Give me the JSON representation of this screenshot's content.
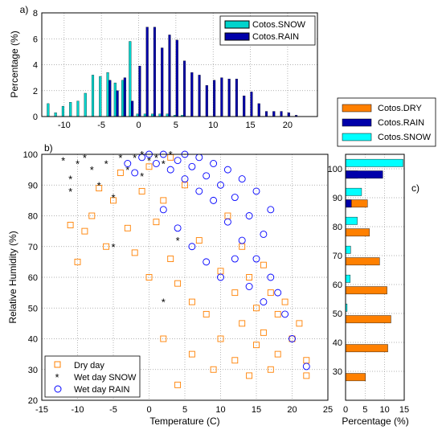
{
  "colors": {
    "dry": "#ff8000",
    "rain": "#0000aa",
    "rain_edge": "#0000ff",
    "snow": "#00ffff",
    "snow_hist": "#00d4cc",
    "grid": "#999999"
  },
  "chart_data": [
    {
      "id": "a",
      "panel_label": "a)",
      "type": "bar",
      "ylabel": "Percentage (%)",
      "xlabel": "",
      "xlim": [
        -13,
        24
      ],
      "ylim": [
        0,
        8
      ],
      "xticks": [
        -10,
        -5,
        0,
        5,
        10,
        15,
        20
      ],
      "yticks": [
        0,
        2,
        4,
        6,
        8
      ],
      "grid": true,
      "legend_position": "top-right",
      "series": [
        {
          "name": "Cotos.SNOW",
          "color_key": "snow_hist",
          "x": [
            -12,
            -11,
            -10,
            -9,
            -8,
            -7,
            -6,
            -5,
            -4,
            -3,
            -2,
            -1,
            0,
            1,
            2,
            3,
            4,
            5,
            6
          ],
          "values": [
            1.0,
            0.3,
            0.8,
            1.1,
            1.2,
            1.8,
            3.2,
            3.1,
            3.4,
            2.6,
            2.8,
            5.8,
            0.2,
            0.2,
            0.2,
            0.2,
            0.2,
            0.1,
            0.1
          ]
        },
        {
          "name": "Cotos.RAIN",
          "color_key": "rain",
          "x": [
            -4,
            -3,
            -2,
            -1,
            0,
            1,
            2,
            3,
            4,
            5,
            6,
            7,
            8,
            9,
            10,
            11,
            12,
            13,
            14,
            15,
            16,
            17,
            18,
            19,
            20,
            21
          ],
          "values": [
            2.8,
            2.0,
            3.0,
            1.2,
            3.9,
            6.9,
            6.9,
            5.3,
            6.3,
            5.9,
            4.3,
            3.4,
            3.2,
            2.4,
            2.8,
            3.0,
            2.9,
            2.9,
            1.6,
            1.9,
            1.0,
            0.4,
            0.4,
            0.4,
            0.3,
            0.1
          ]
        }
      ]
    },
    {
      "id": "b",
      "panel_label": "b)",
      "type": "scatter",
      "xlabel": "Temperature (C)",
      "ylabel": "Relative Humidity (%)",
      "xlim": [
        -15,
        25
      ],
      "ylim": [
        20,
        100
      ],
      "xticks": [
        -15,
        -10,
        -5,
        0,
        5,
        10,
        15,
        20,
        25
      ],
      "yticks": [
        20,
        30,
        40,
        50,
        60,
        70,
        80,
        90,
        100
      ],
      "grid": true,
      "legend_position": "bottom-left",
      "series": [
        {
          "name": "Dry day",
          "marker": "square",
          "color_key": "dry",
          "centroid": [
            10.5,
            57
          ],
          "points": [
            [
              -10,
              65
            ],
            [
              -9,
              75
            ],
            [
              -8,
              80
            ],
            [
              -6,
              70
            ],
            [
              -5,
              85
            ],
            [
              -4,
              94
            ],
            [
              -3,
              76
            ],
            [
              -2,
              68
            ],
            [
              -1,
              88
            ],
            [
              0,
              60
            ],
            [
              1,
              78
            ],
            [
              2,
              85
            ],
            [
              2,
              40
            ],
            [
              3,
              66
            ],
            [
              4,
              58
            ],
            [
              4,
              25
            ],
            [
              5,
              90
            ],
            [
              6,
              52
            ],
            [
              6,
              35
            ],
            [
              7,
              72
            ],
            [
              8,
              48
            ],
            [
              9,
              30
            ],
            [
              10,
              62
            ],
            [
              10,
              40
            ],
            [
              11,
              80
            ],
            [
              12,
              55
            ],
            [
              12,
              33
            ],
            [
              13,
              70
            ],
            [
              13,
              45
            ],
            [
              14,
              60
            ],
            [
              14,
              28
            ],
            [
              15,
              50
            ],
            [
              15,
              38
            ],
            [
              16,
              64
            ],
            [
              16,
              42
            ],
            [
              17,
              55
            ],
            [
              17,
              30
            ],
            [
              18,
              48
            ],
            [
              18,
              35
            ],
            [
              19,
              52
            ],
            [
              20,
              40
            ],
            [
              21,
              45
            ],
            [
              22,
              33
            ],
            [
              22,
              28
            ],
            [
              -7,
              89
            ],
            [
              -11,
              77
            ],
            [
              0,
              96
            ],
            [
              3,
              99
            ]
          ]
        },
        {
          "name": "Wet day SNOW",
          "marker": "star",
          "color_key": "snow",
          "points": [
            [
              -12,
              98
            ],
            [
              -11,
              92
            ],
            [
              -11,
              88
            ],
            [
              -10,
              97
            ],
            [
              -9,
              99
            ],
            [
              -8,
              95
            ],
            [
              -7,
              90
            ],
            [
              -6,
              97
            ],
            [
              -5,
              86
            ],
            [
              -5,
              70
            ],
            [
              -4,
              99
            ],
            [
              -3,
              95
            ],
            [
              -2,
              99
            ],
            [
              -1,
              100
            ],
            [
              0,
              98
            ],
            [
              1,
              99
            ],
            [
              2,
              97
            ],
            [
              3,
              100
            ],
            [
              4,
              72
            ],
            [
              2,
              52
            ],
            [
              -1,
              93
            ]
          ]
        },
        {
          "name": "Wet day RAIN",
          "marker": "circle",
          "color_key": "rain_edge",
          "points": [
            [
              -3,
              97
            ],
            [
              -2,
              94
            ],
            [
              -1,
              99
            ],
            [
              0,
              100
            ],
            [
              1,
              97
            ],
            [
              2,
              100
            ],
            [
              3,
              95
            ],
            [
              4,
              98
            ],
            [
              5,
              92
            ],
            [
              6,
              96
            ],
            [
              7,
              88
            ],
            [
              8,
              93
            ],
            [
              9,
              85
            ],
            [
              10,
              90
            ],
            [
              11,
              78
            ],
            [
              12,
              86
            ],
            [
              13,
              72
            ],
            [
              14,
              80
            ],
            [
              15,
              66
            ],
            [
              16,
              74
            ],
            [
              17,
              60
            ],
            [
              18,
              55
            ],
            [
              19,
              48
            ],
            [
              20,
              40
            ],
            [
              22,
              31
            ],
            [
              2,
              82
            ],
            [
              4,
              76
            ],
            [
              6,
              70
            ],
            [
              8,
              65
            ],
            [
              10,
              60
            ],
            [
              12,
              66
            ],
            [
              14,
              57
            ],
            [
              16,
              52
            ],
            [
              5,
              100
            ],
            [
              7,
              99
            ],
            [
              9,
              97
            ],
            [
              11,
              95
            ],
            [
              13,
              92
            ],
            [
              15,
              88
            ],
            [
              17,
              82
            ]
          ]
        }
      ]
    },
    {
      "id": "c",
      "panel_label": "c)",
      "type": "bar",
      "orientation": "horizontal",
      "xlabel": "Percentage (%)",
      "ylabel": "",
      "xlim": [
        0,
        15
      ],
      "ylim": [
        20,
        105
      ],
      "xticks": [
        0,
        5,
        10,
        15
      ],
      "yticks": [
        30,
        40,
        50,
        60,
        70,
        80,
        90,
        100
      ],
      "grid": true,
      "legend_position": "top-right",
      "series": [
        {
          "name": "Cotos.DRY",
          "color_key": "dry",
          "y": [
            28,
            38,
            48,
            58,
            68,
            78,
            88,
            98
          ],
          "values": [
            5.1,
            10.8,
            11.6,
            10.6,
            8.7,
            6.1,
            5.6,
            3.1
          ]
        },
        {
          "name": "Cotos.RAIN",
          "color_key": "rain",
          "y": [
            88,
            98
          ],
          "values": [
            1.5,
            9.5
          ]
        },
        {
          "name": "Cotos.SNOW",
          "color_key": "snow",
          "y": [
            52,
            62,
            72,
            82,
            92,
            102
          ],
          "values": [
            0.4,
            1.2,
            1.3,
            3.0,
            4.1,
            14.7
          ]
        }
      ]
    }
  ]
}
